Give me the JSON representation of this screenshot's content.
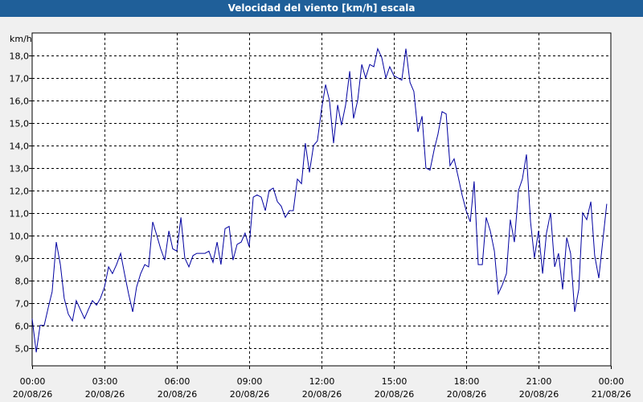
{
  "window": {
    "title": "Velocidad del viento [km/h] escala"
  },
  "chart_data": {
    "type": "line",
    "title": "Velocidad del viento [km/h] escala",
    "ylabel": "km/h",
    "xlabel": "",
    "grid": true,
    "line_color": "#0000a0",
    "ylim": [
      4.2,
      19.0
    ],
    "xlim_hours": [
      0,
      24
    ],
    "yticks": [
      "5,0",
      "6,0",
      "7,0",
      "8,0",
      "9,0",
      "10,0",
      "11,0",
      "12,0",
      "13,0",
      "14,0",
      "15,0",
      "16,0",
      "17,0",
      "18,0"
    ],
    "xticks": [
      {
        "time": "00:00",
        "date": "20/08/26"
      },
      {
        "time": "03:00",
        "date": "20/08/26"
      },
      {
        "time": "06:00",
        "date": "20/08/26"
      },
      {
        "time": "09:00",
        "date": "20/08/26"
      },
      {
        "time": "12:00",
        "date": "20/08/26"
      },
      {
        "time": "15:00",
        "date": "20/08/26"
      },
      {
        "time": "18:00",
        "date": "20/08/26"
      },
      {
        "time": "21:00",
        "date": "20/08/26"
      },
      {
        "time": "00:00",
        "date": "21/08/26"
      }
    ],
    "series": [
      {
        "values": [
          [
            0.0,
            6.3
          ],
          [
            0.17,
            4.8
          ],
          [
            0.33,
            6.0
          ],
          [
            0.5,
            6.0
          ],
          [
            0.67,
            6.8
          ],
          [
            0.83,
            7.5
          ],
          [
            1.0,
            9.7
          ],
          [
            1.17,
            8.7
          ],
          [
            1.33,
            7.2
          ],
          [
            1.5,
            6.5
          ],
          [
            1.67,
            6.2
          ],
          [
            1.83,
            7.1
          ],
          [
            2.0,
            6.7
          ],
          [
            2.17,
            6.3
          ],
          [
            2.33,
            6.7
          ],
          [
            2.5,
            7.1
          ],
          [
            2.67,
            6.9
          ],
          [
            2.83,
            7.2
          ],
          [
            3.0,
            7.7
          ],
          [
            3.17,
            8.6
          ],
          [
            3.33,
            8.3
          ],
          [
            3.5,
            8.7
          ],
          [
            3.67,
            9.2
          ],
          [
            3.83,
            8.3
          ],
          [
            4.0,
            7.4
          ],
          [
            4.17,
            6.6
          ],
          [
            4.33,
            7.7
          ],
          [
            4.5,
            8.3
          ],
          [
            4.67,
            8.7
          ],
          [
            4.83,
            8.6
          ],
          [
            5.0,
            10.6
          ],
          [
            5.17,
            10.0
          ],
          [
            5.33,
            9.4
          ],
          [
            5.5,
            8.9
          ],
          [
            5.67,
            10.2
          ],
          [
            5.83,
            9.4
          ],
          [
            6.0,
            9.3
          ],
          [
            6.17,
            10.8
          ],
          [
            6.33,
            9.0
          ],
          [
            6.5,
            8.6
          ],
          [
            6.67,
            9.1
          ],
          [
            6.83,
            9.2
          ],
          [
            7.0,
            9.2
          ],
          [
            7.17,
            9.2
          ],
          [
            7.33,
            9.3
          ],
          [
            7.5,
            8.8
          ],
          [
            7.67,
            9.7
          ],
          [
            7.83,
            8.7
          ],
          [
            8.0,
            10.3
          ],
          [
            8.17,
            10.4
          ],
          [
            8.33,
            8.9
          ],
          [
            8.5,
            9.6
          ],
          [
            8.67,
            9.7
          ],
          [
            8.83,
            10.1
          ],
          [
            9.0,
            9.5
          ],
          [
            9.17,
            11.7
          ],
          [
            9.33,
            11.8
          ],
          [
            9.5,
            11.7
          ],
          [
            9.67,
            11.1
          ],
          [
            9.83,
            12.0
          ],
          [
            10.0,
            12.1
          ],
          [
            10.17,
            11.5
          ],
          [
            10.33,
            11.3
          ],
          [
            10.5,
            10.8
          ],
          [
            10.67,
            11.1
          ],
          [
            10.83,
            11.1
          ],
          [
            11.0,
            12.5
          ],
          [
            11.17,
            12.3
          ],
          [
            11.33,
            14.1
          ],
          [
            11.5,
            12.8
          ],
          [
            11.67,
            14.0
          ],
          [
            11.83,
            14.2
          ],
          [
            12.0,
            15.6
          ],
          [
            12.17,
            16.7
          ],
          [
            12.33,
            16.0
          ],
          [
            12.5,
            14.1
          ],
          [
            12.67,
            15.8
          ],
          [
            12.83,
            14.9
          ],
          [
            13.0,
            15.8
          ],
          [
            13.17,
            17.3
          ],
          [
            13.33,
            15.2
          ],
          [
            13.5,
            16.0
          ],
          [
            13.67,
            17.6
          ],
          [
            13.83,
            17.0
          ],
          [
            14.0,
            17.6
          ],
          [
            14.17,
            17.5
          ],
          [
            14.33,
            18.3
          ],
          [
            14.5,
            17.9
          ],
          [
            14.67,
            17.0
          ],
          [
            14.83,
            17.5
          ],
          [
            15.0,
            17.1
          ],
          [
            15.17,
            17.0
          ],
          [
            15.33,
            16.9
          ],
          [
            15.5,
            18.3
          ],
          [
            15.67,
            16.8
          ],
          [
            15.83,
            16.4
          ],
          [
            16.0,
            14.6
          ],
          [
            16.17,
            15.3
          ],
          [
            16.33,
            13.0
          ],
          [
            16.5,
            12.9
          ],
          [
            16.67,
            13.8
          ],
          [
            16.83,
            14.5
          ],
          [
            17.0,
            15.5
          ],
          [
            17.17,
            15.4
          ],
          [
            17.33,
            13.1
          ],
          [
            17.5,
            13.4
          ],
          [
            17.67,
            12.6
          ],
          [
            17.83,
            11.8
          ],
          [
            18.0,
            11.1
          ],
          [
            18.17,
            10.6
          ],
          [
            18.33,
            12.4
          ],
          [
            18.5,
            8.7
          ],
          [
            18.67,
            8.7
          ],
          [
            18.83,
            10.8
          ],
          [
            19.0,
            10.2
          ],
          [
            19.17,
            9.3
          ],
          [
            19.33,
            7.4
          ],
          [
            19.5,
            7.8
          ],
          [
            19.67,
            8.3
          ],
          [
            19.83,
            10.7
          ],
          [
            20.0,
            9.7
          ],
          [
            20.17,
            12.0
          ],
          [
            20.33,
            12.5
          ],
          [
            20.5,
            13.6
          ],
          [
            20.67,
            10.6
          ],
          [
            20.83,
            9.0
          ],
          [
            21.0,
            10.2
          ],
          [
            21.17,
            8.3
          ],
          [
            21.33,
            10.1
          ],
          [
            21.5,
            11.0
          ],
          [
            21.67,
            8.6
          ],
          [
            21.83,
            9.2
          ],
          [
            22.0,
            7.6
          ],
          [
            22.17,
            9.9
          ],
          [
            22.33,
            9.2
          ],
          [
            22.5,
            6.6
          ],
          [
            22.67,
            7.6
          ],
          [
            22.83,
            11.0
          ],
          [
            23.0,
            10.7
          ],
          [
            23.17,
            11.5
          ],
          [
            23.33,
            9.1
          ],
          [
            23.5,
            8.1
          ],
          [
            23.67,
            9.8
          ],
          [
            23.83,
            11.4
          ]
        ]
      }
    ]
  }
}
